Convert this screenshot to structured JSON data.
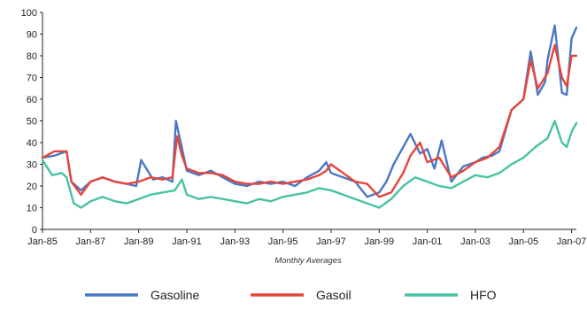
{
  "chart_data": {
    "type": "line",
    "xlabel": "Monthly Averages",
    "ylabel": "",
    "ylim": [
      0,
      100
    ],
    "y_ticks": [
      "0",
      "10",
      "20",
      "30",
      "40",
      "50",
      "60",
      "70",
      "80",
      "90",
      "100"
    ],
    "x_ticks": [
      "Jan-85",
      "Jan-87",
      "Jan-89",
      "Jan-91",
      "Jan-93",
      "Jan-95",
      "Jan-97",
      "Jan-99",
      "Jan-01",
      "Jan-03",
      "Jan-05",
      "Jan-07"
    ],
    "x_tick_values": [
      1985,
      1987,
      1989,
      1991,
      1993,
      1995,
      1997,
      1999,
      2001,
      2003,
      2005,
      2007
    ],
    "xlim": [
      1985,
      2007.2
    ],
    "grid": false,
    "legend_position": "bottom",
    "series": [
      {
        "name": "Gasoline",
        "color": "#4a78c4",
        "x": [
          1985,
          1985.5,
          1986,
          1986.2,
          1986.6,
          1987,
          1987.5,
          1988,
          1988.5,
          1988.9,
          1989.1,
          1989.6,
          1990,
          1990.4,
          1990.55,
          1990.75,
          1991,
          1991.5,
          1992,
          1992.5,
          1993,
          1993.5,
          1994,
          1994.5,
          1995,
          1995.5,
          1996,
          1996.5,
          1996.8,
          1997,
          1997.5,
          1998,
          1998.5,
          1999,
          1999.3,
          1999.6,
          2000,
          2000.3,
          2000.7,
          2001,
          2001.3,
          2001.6,
          2002,
          2002.5,
          2003,
          2003.3,
          2003.7,
          2004,
          2004.5,
          2005,
          2005.3,
          2005.6,
          2005.9,
          2006,
          2006.3,
          2006.6,
          2006.8,
          2007,
          2007.2
        ],
        "values": [
          33,
          34,
          36,
          22,
          18,
          22,
          24,
          22,
          21,
          20,
          32,
          23,
          24,
          22,
          50,
          40,
          27,
          25,
          27,
          24,
          21,
          20,
          22,
          21,
          22,
          20,
          24,
          27,
          31,
          26,
          24,
          22,
          15,
          17,
          22,
          30,
          38,
          44,
          35,
          37,
          28,
          41,
          22,
          29,
          31,
          33,
          34,
          36,
          55,
          60,
          82,
          62,
          68,
          78,
          94,
          63,
          62,
          88,
          93
        ]
      },
      {
        "name": "Gasoil",
        "color": "#e5463c",
        "x": [
          1985,
          1985.5,
          1986,
          1986.2,
          1986.6,
          1987,
          1987.5,
          1988,
          1988.5,
          1989,
          1989.5,
          1990,
          1990.4,
          1990.6,
          1990.8,
          1991,
          1991.5,
          1992,
          1992.5,
          1993,
          1993.5,
          1994,
          1994.5,
          1995,
          1995.5,
          1996,
          1996.5,
          1996.8,
          1997,
          1997.5,
          1998,
          1998.5,
          1999,
          1999.5,
          2000,
          2000.3,
          2000.7,
          2001,
          2001.5,
          2002,
          2002.5,
          2003,
          2003.5,
          2004,
          2004.5,
          2005,
          2005.3,
          2005.6,
          2006,
          2006.3,
          2006.6,
          2006.8,
          2007,
          2007.2
        ],
        "values": [
          33,
          36,
          36,
          22,
          16,
          22,
          24,
          22,
          21,
          22,
          24,
          23,
          24,
          43,
          34,
          28,
          26,
          26,
          25,
          22,
          21,
          21,
          22,
          21,
          22,
          23,
          25,
          27,
          30,
          26,
          22,
          21,
          15,
          17,
          26,
          34,
          40,
          31,
          33,
          24,
          27,
          31,
          33,
          38,
          55,
          60,
          78,
          65,
          72,
          85,
          70,
          66,
          80,
          80
        ]
      },
      {
        "name": "HFO",
        "color": "#48c2a3",
        "x": [
          1985,
          1985.4,
          1985.8,
          1986,
          1986.3,
          1986.6,
          1987,
          1987.5,
          1988,
          1988.5,
          1989,
          1989.5,
          1990,
          1990.5,
          1990.8,
          1991,
          1991.5,
          1992,
          1992.5,
          1993,
          1993.5,
          1994,
          1994.5,
          1995,
          1995.5,
          1996,
          1996.5,
          1997,
          1997.5,
          1998,
          1998.5,
          1999,
          1999.5,
          2000,
          2000.5,
          2001,
          2001.5,
          2002,
          2002.5,
          2003,
          2003.5,
          2004,
          2004.5,
          2005,
          2005.5,
          2006,
          2006.3,
          2006.6,
          2006.8,
          2007,
          2007.2
        ],
        "values": [
          32,
          25,
          26,
          24,
          12,
          10,
          13,
          15,
          13,
          12,
          14,
          16,
          17,
          18,
          23,
          16,
          14,
          15,
          14,
          13,
          12,
          14,
          13,
          15,
          16,
          17,
          19,
          18,
          16,
          14,
          12,
          10,
          14,
          20,
          24,
          22,
          20,
          19,
          22,
          25,
          24,
          26,
          30,
          33,
          38,
          42,
          50,
          40,
          38,
          45,
          49
        ]
      }
    ]
  }
}
